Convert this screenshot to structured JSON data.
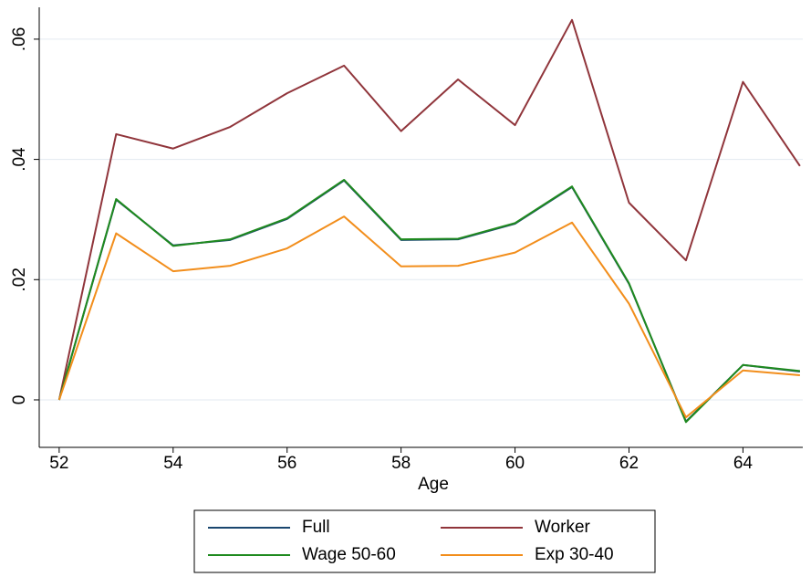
{
  "chart_data": {
    "type": "line",
    "x_label": "Age",
    "x": [
      52,
      53,
      54,
      55,
      56,
      57,
      58,
      59,
      60,
      61,
      62,
      63,
      64,
      65
    ],
    "series": [
      {
        "name": "Full",
        "color": "#1a476f",
        "values": [
          0,
          0.0333,
          0.0257,
          0.0266,
          0.0301,
          0.0365,
          0.0266,
          0.0267,
          0.0293,
          0.0354,
          0.0193,
          -0.0036,
          0.0058,
          0.0047
        ]
      },
      {
        "name": "Worker",
        "color": "#90353b",
        "values": [
          0,
          0.0442,
          0.0418,
          0.0454,
          0.051,
          0.0556,
          0.0447,
          0.0533,
          0.0457,
          0.0632,
          0.0328,
          0.0232,
          0.0529,
          0.0389
        ]
      },
      {
        "name": "Wage 50-60",
        "color": "#1f8a1f",
        "values": [
          0,
          0.0334,
          0.0256,
          0.0267,
          0.0302,
          0.0366,
          0.0267,
          0.0268,
          0.0294,
          0.0355,
          0.0194,
          -0.0037,
          0.0058,
          0.0048
        ]
      },
      {
        "name": "Exp 30-40",
        "color": "#f28e1c",
        "values": [
          0,
          0.0277,
          0.0214,
          0.0223,
          0.0252,
          0.0305,
          0.0222,
          0.0223,
          0.0245,
          0.0295,
          0.016,
          -0.0029,
          0.0049,
          0.0041
        ]
      }
    ],
    "xlim": [
      51.65,
      65.05
    ],
    "xticks": [
      52,
      54,
      56,
      58,
      60,
      62,
      64
    ],
    "ylim": [
      -0.0079,
      0.0653
    ],
    "yticks": [
      0,
      {
        "value": 0.02,
        "label": ".02"
      },
      {
        "value": 0.04,
        "label": ".04"
      },
      {
        "value": 0.06,
        "label": ".06"
      }
    ],
    "grid": true
  }
}
